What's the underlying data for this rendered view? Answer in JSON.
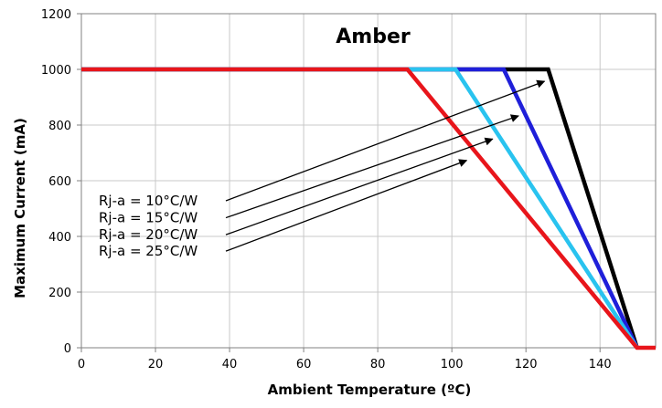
{
  "chart_data": {
    "type": "line",
    "title": "Amber",
    "xlabel": "Ambient Temperature (ºC)",
    "ylabel": "Maximum Current (mA)",
    "xlim": [
      0,
      155
    ],
    "ylim": [
      0,
      1200
    ],
    "xticks": [
      0,
      20,
      40,
      60,
      80,
      100,
      120,
      140
    ],
    "yticks": [
      0,
      200,
      400,
      600,
      800,
      1000,
      1200
    ],
    "grid": true,
    "series": [
      {
        "name": "Rj-a = 10°C/W",
        "color": "#000000",
        "points": [
          [
            0,
            1000
          ],
          [
            126,
            1000
          ],
          [
            150,
            0
          ]
        ]
      },
      {
        "name": "Rj-a = 15°C/W",
        "color": "#1f1fd9",
        "points": [
          [
            0,
            1000
          ],
          [
            114,
            1000
          ],
          [
            150,
            0
          ]
        ]
      },
      {
        "name": "Rj-a = 20°C/W",
        "color": "#29c3ef",
        "points": [
          [
            0,
            1000
          ],
          [
            101,
            1000
          ],
          [
            150,
            0
          ]
        ]
      },
      {
        "name": "Rj-a = 25°C/W",
        "color": "#e8151b",
        "points": [
          [
            0,
            1000
          ],
          [
            88,
            1000
          ],
          [
            150,
            0
          ],
          [
            155,
            0
          ]
        ]
      }
    ],
    "annotations": [
      {
        "label": "Rj-a = 10°C/W",
        "arrow_from": [
          39,
          528
        ],
        "arrow_to": [
          125,
          957
        ]
      },
      {
        "label": "Rj-a = 15°C/W",
        "arrow_from": [
          39,
          467
        ],
        "arrow_to": [
          118,
          833
        ]
      },
      {
        "label": "Rj-a = 20°C/W",
        "arrow_from": [
          39,
          406
        ],
        "arrow_to": [
          111,
          750
        ]
      },
      {
        "label": "Rj-a = 25°C/W",
        "arrow_from": [
          39,
          347
        ],
        "arrow_to": [
          104,
          673
        ]
      }
    ]
  }
}
